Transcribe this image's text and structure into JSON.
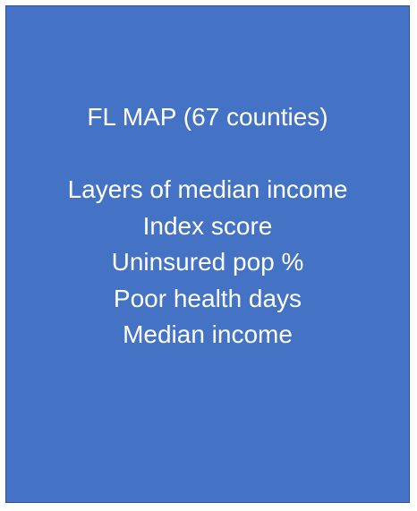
{
  "panel": {
    "background_color": "#4472c4",
    "text_color": "#ffffff",
    "title": "FL MAP (67 counties)",
    "lines": [
      "Layers of median income",
      "Index score",
      "Uninsured pop %",
      "Poor health days",
      "Median income"
    ]
  }
}
